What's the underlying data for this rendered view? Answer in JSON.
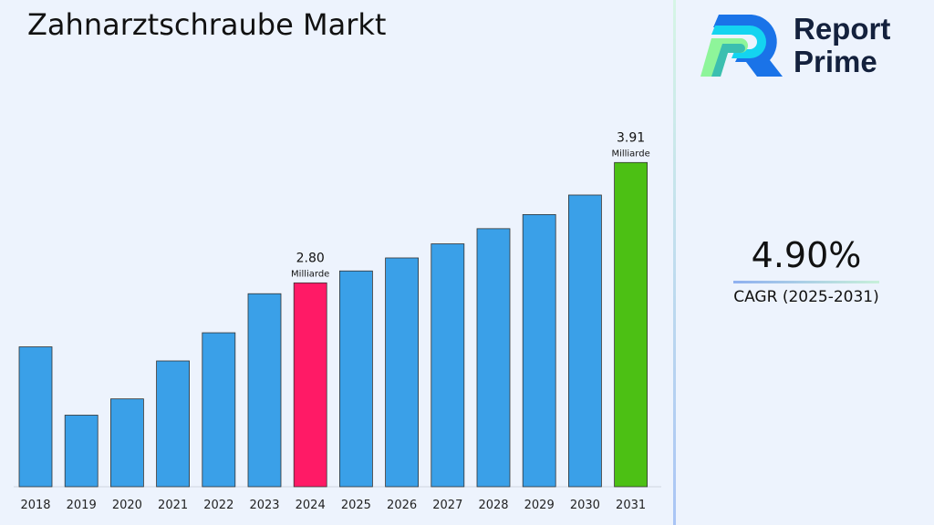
{
  "title": "Zahnarztschraube Markt",
  "logo": {
    "line1": "Report",
    "line2": "Prime"
  },
  "cagr": {
    "value": "4.90%",
    "label": "CAGR (2025-2031)"
  },
  "colors": {
    "default_bar": "#3aa0e8",
    "highlight_2024": "#ff1a66",
    "highlight_2031": "#4cc014"
  },
  "chart_data": {
    "type": "bar",
    "title": "Zahnarztschraube Markt",
    "categories": [
      "2018",
      "2019",
      "2020",
      "2021",
      "2022",
      "2023",
      "2024",
      "2025",
      "2026",
      "2027",
      "2028",
      "2029",
      "2030",
      "2031"
    ],
    "values": [
      2.21,
      1.58,
      1.73,
      2.08,
      2.34,
      2.7,
      2.8,
      2.91,
      3.03,
      3.16,
      3.3,
      3.43,
      3.61,
      3.91
    ],
    "ylim": [
      0.92,
      4.4
    ],
    "grid": false,
    "data_labels": [
      {
        "category": "2024",
        "value": "2.80",
        "unit": "Milliarde"
      },
      {
        "category": "2031",
        "value": "3.91",
        "unit": "Milliarde"
      }
    ]
  }
}
